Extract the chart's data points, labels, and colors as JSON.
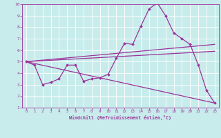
{
  "xlabel": "Windchill (Refroidissement éolien,°C)",
  "bg_color": "#c8ecec",
  "line_color": "#993399",
  "xlim": [
    -0.5,
    23.5
  ],
  "ylim": [
    1,
    10
  ],
  "xticks": [
    0,
    1,
    2,
    3,
    4,
    5,
    6,
    7,
    8,
    9,
    10,
    11,
    12,
    13,
    14,
    15,
    16,
    17,
    18,
    19,
    20,
    21,
    22,
    23
  ],
  "yticks": [
    1,
    2,
    3,
    4,
    5,
    6,
    7,
    8,
    9,
    10
  ],
  "main_x": [
    0,
    1,
    2,
    3,
    4,
    5,
    6,
    7,
    8,
    9,
    10,
    11,
    12,
    13,
    14,
    15,
    16,
    17,
    18,
    19,
    20,
    21,
    22,
    23
  ],
  "main_y": [
    5,
    4.7,
    3.0,
    3.2,
    3.5,
    4.7,
    4.7,
    3.3,
    3.5,
    3.6,
    3.9,
    5.3,
    6.6,
    6.5,
    8.1,
    9.6,
    10.1,
    9.0,
    7.5,
    7.0,
    6.5,
    4.7,
    2.5,
    1.4
  ],
  "trend_lines": [
    {
      "x": [
        0,
        23
      ],
      "y": [
        5.0,
        6.5
      ]
    },
    {
      "x": [
        0,
        23
      ],
      "y": [
        5.0,
        5.9
      ]
    },
    {
      "x": [
        0,
        23
      ],
      "y": [
        5.0,
        1.4
      ]
    }
  ]
}
